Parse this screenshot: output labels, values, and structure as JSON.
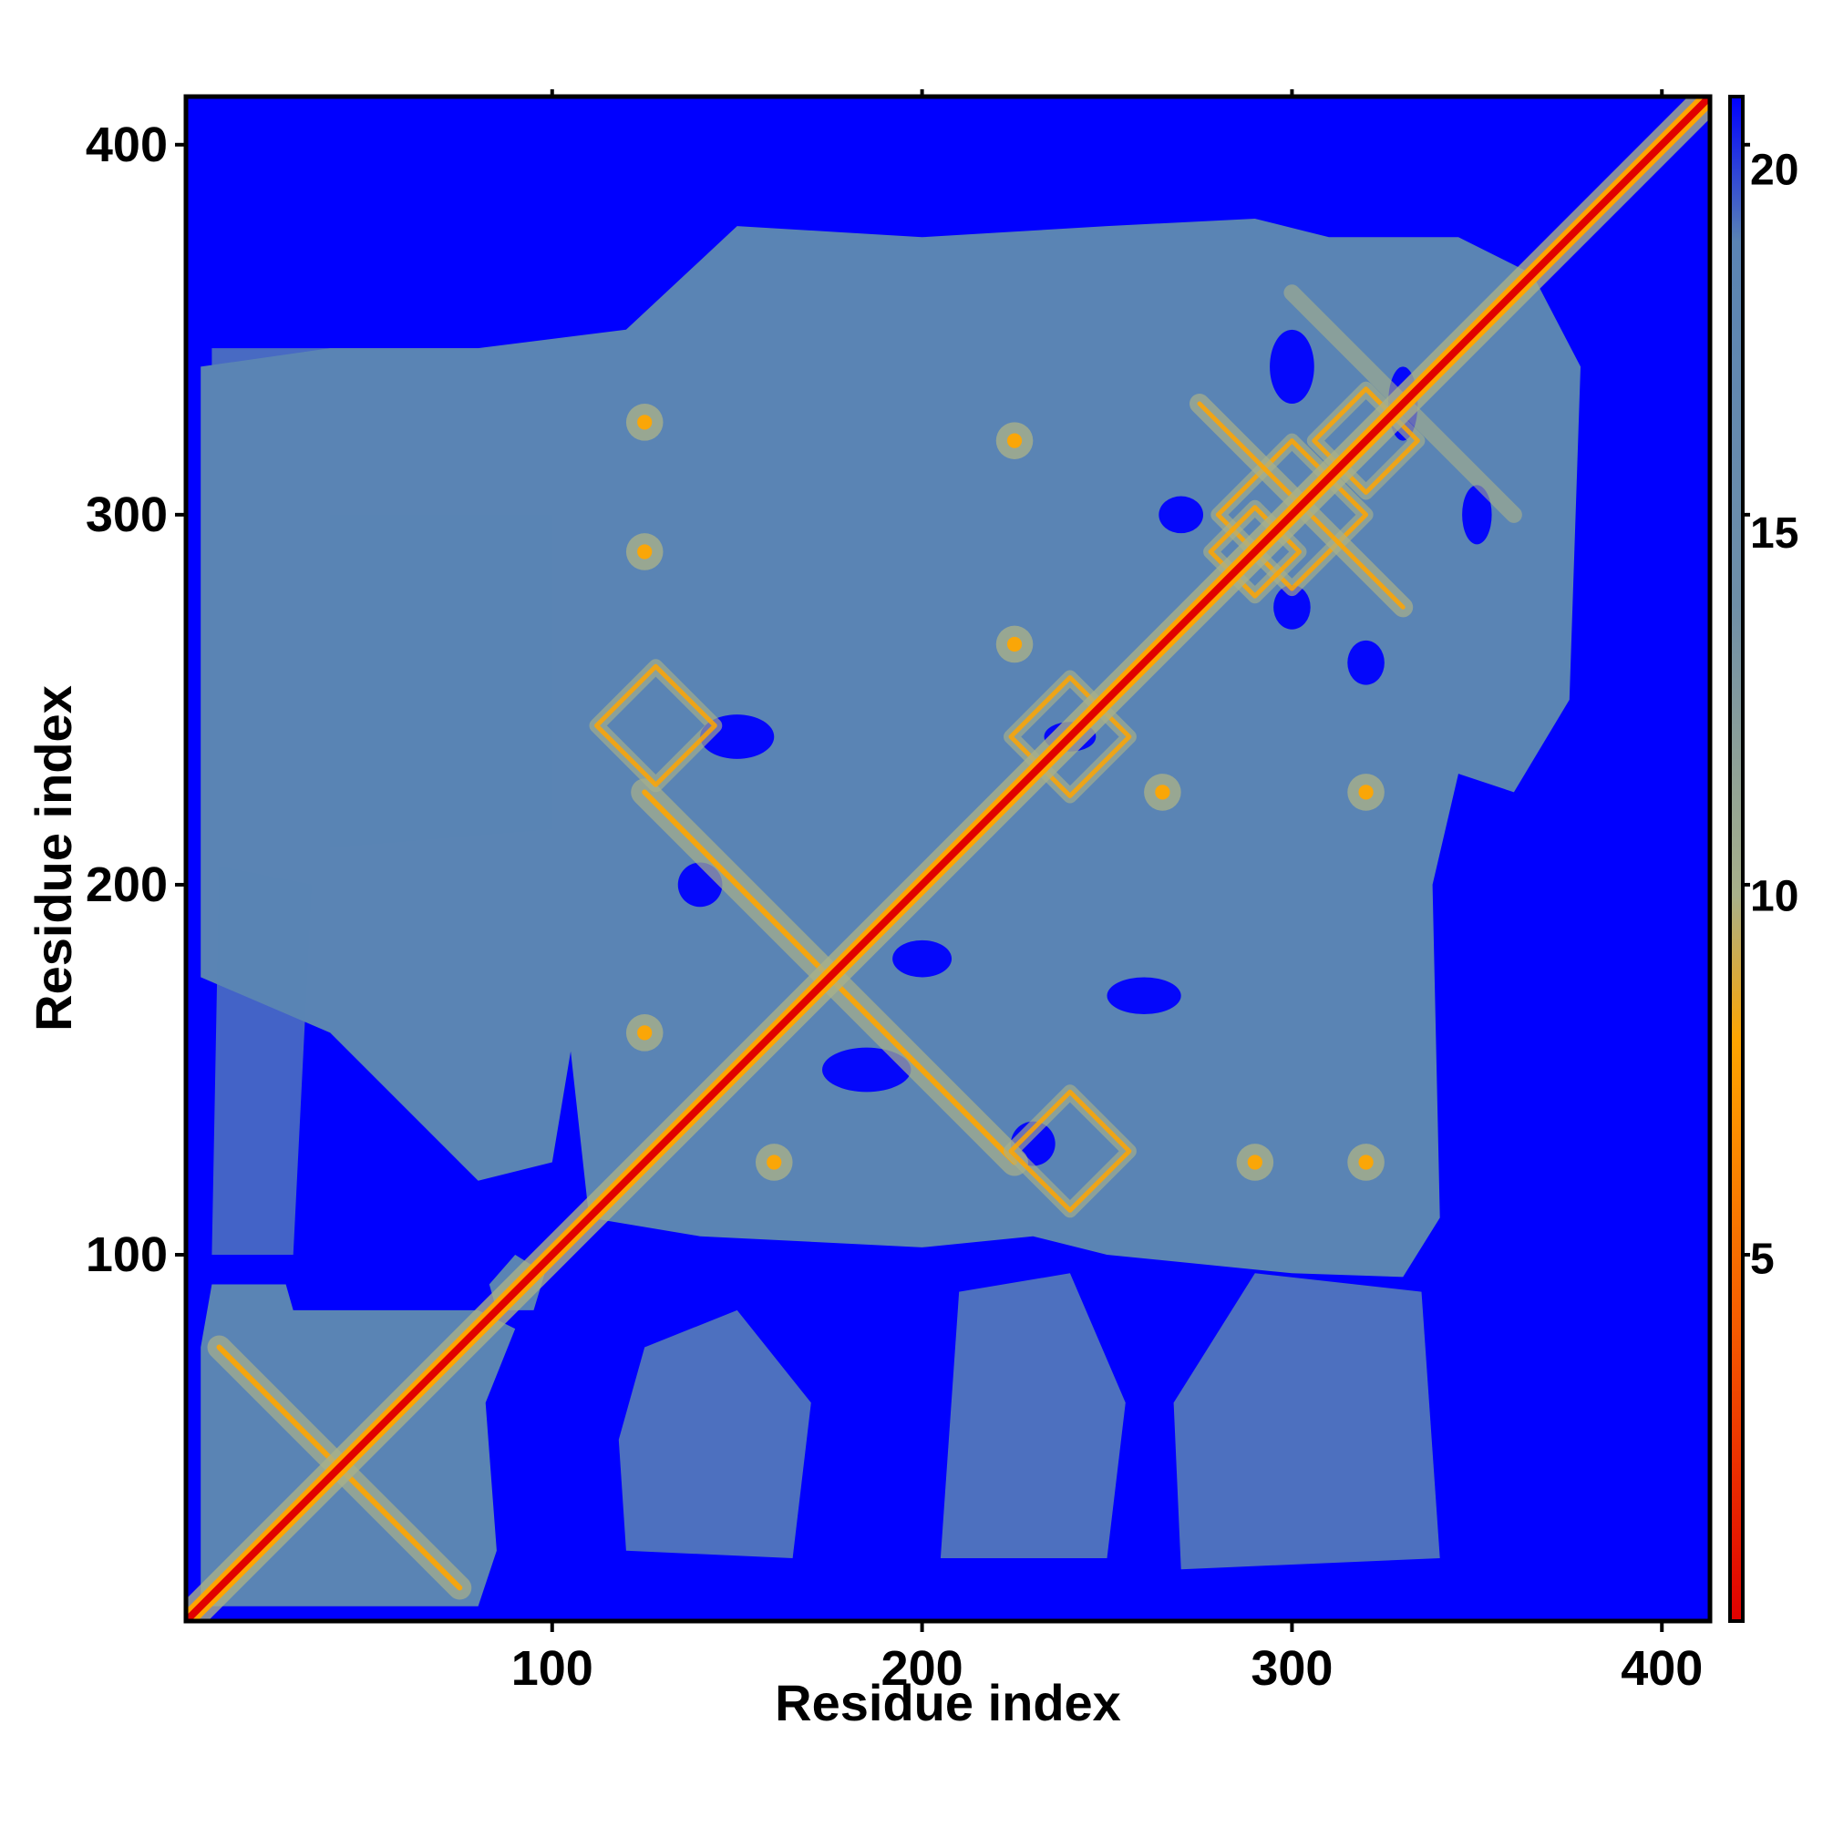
{
  "chart_data": {
    "type": "heatmap",
    "title": "",
    "xlabel": "Residue index",
    "ylabel": "Residue index",
    "xlim": [
      1,
      413
    ],
    "ylim": [
      1,
      413
    ],
    "x_ticks": [
      "100",
      "200",
      "300",
      "400"
    ],
    "y_ticks": [
      "100",
      "200",
      "300",
      "400"
    ],
    "x_tick_values": [
      100,
      200,
      300,
      400
    ],
    "y_tick_values": [
      100,
      200,
      300,
      400
    ],
    "colorbar": {
      "range": [
        0,
        21
      ],
      "ticks": [
        "5",
        "10",
        "15",
        "20"
      ],
      "tick_values": [
        5,
        10,
        15,
        20
      ],
      "stops": [
        {
          "value": 0,
          "color": "#e00000"
        },
        {
          "value": 4,
          "color": "#f55a00"
        },
        {
          "value": 8,
          "color": "#ffa500"
        },
        {
          "value": 10,
          "color": "#a8b08a"
        },
        {
          "value": 14,
          "color": "#6f8fa8"
        },
        {
          "value": 19,
          "color": "#5a84b4"
        },
        {
          "value": 21,
          "color": "#0000ff"
        }
      ]
    },
    "colors": {
      "background": "#0000ff",
      "far": "#5a84b4",
      "medium": "#a8b08a",
      "near": "#ffa500",
      "contact": "#e00000"
    },
    "domains": [
      {
        "start": 1,
        "end": 80
      },
      {
        "start": 105,
        "end": 270
      },
      {
        "start": 260,
        "end": 380
      }
    ],
    "diagonal": "symmetric distance matrix with red main diagonal"
  }
}
